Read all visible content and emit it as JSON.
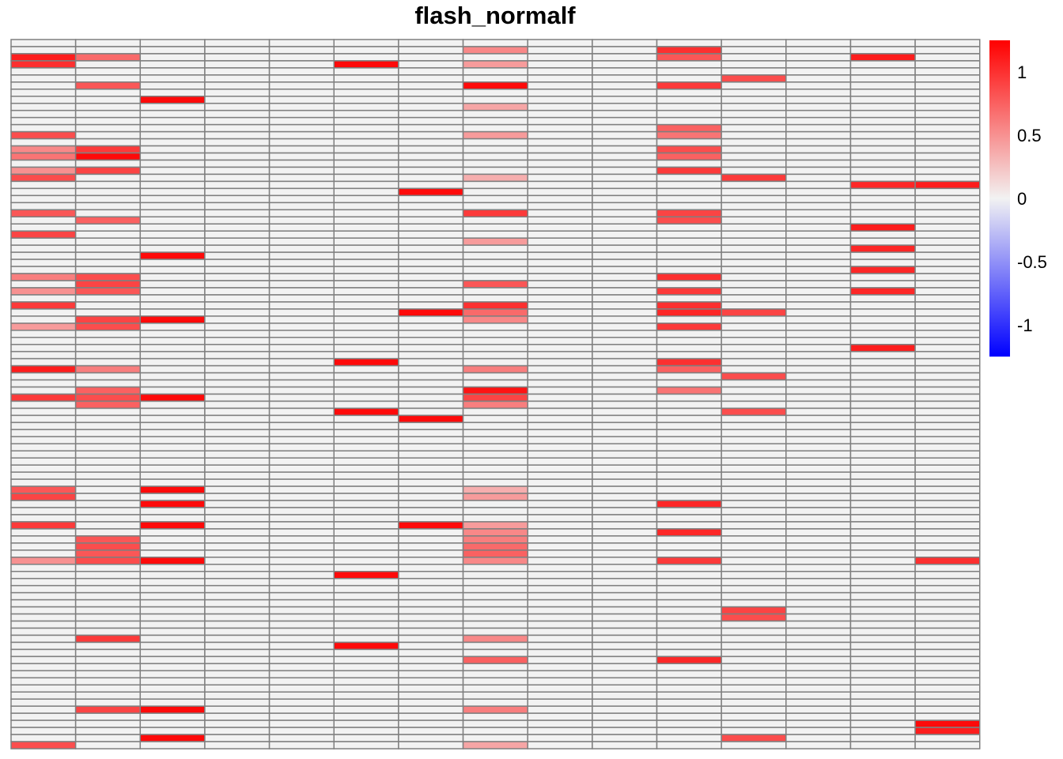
{
  "chart_data": {
    "type": "heatmap",
    "title": "flash_normalf",
    "n_rows": 100,
    "n_cols": 15,
    "colors": {
      "low": "#0000ff",
      "mid": "#f2f2f2",
      "high": "#ff0000",
      "grid": "#7f7f7f"
    },
    "value_range": [
      -1.25,
      1.25
    ],
    "legend_ticks": [
      "1",
      "0.5",
      "0",
      "-0.5",
      "-1"
    ],
    "legend_tick_values": [
      1,
      0.5,
      0,
      -0.5,
      -1
    ],
    "cells": [
      [
        2,
        0,
        1.1
      ],
      [
        3,
        0,
        1.0
      ],
      [
        13,
        0,
        0.85
      ],
      [
        15,
        0,
        0.55
      ],
      [
        16,
        0,
        0.65
      ],
      [
        18,
        0,
        0.5
      ],
      [
        19,
        0,
        0.85
      ],
      [
        24,
        0,
        0.8
      ],
      [
        27,
        0,
        0.9
      ],
      [
        33,
        0,
        0.6
      ],
      [
        35,
        0,
        0.5
      ],
      [
        37,
        0,
        0.95
      ],
      [
        40,
        0,
        0.45
      ],
      [
        46,
        0,
        1.1
      ],
      [
        50,
        0,
        0.95
      ],
      [
        63,
        0,
        0.8
      ],
      [
        64,
        0,
        0.9
      ],
      [
        68,
        0,
        0.95
      ],
      [
        73,
        0,
        0.5
      ],
      [
        99,
        0,
        0.85
      ],
      [
        2,
        1,
        0.7
      ],
      [
        6,
        1,
        0.8
      ],
      [
        15,
        1,
        0.95
      ],
      [
        16,
        1,
        1.2
      ],
      [
        18,
        1,
        0.9
      ],
      [
        25,
        1,
        0.75
      ],
      [
        33,
        1,
        0.85
      ],
      [
        34,
        1,
        0.9
      ],
      [
        35,
        1,
        0.8
      ],
      [
        39,
        1,
        0.9
      ],
      [
        40,
        1,
        0.85
      ],
      [
        46,
        1,
        0.6
      ],
      [
        49,
        1,
        0.75
      ],
      [
        50,
        1,
        0.85
      ],
      [
        51,
        1,
        0.75
      ],
      [
        70,
        1,
        0.8
      ],
      [
        71,
        1,
        0.85
      ],
      [
        72,
        1,
        0.8
      ],
      [
        73,
        1,
        0.85
      ],
      [
        84,
        1,
        0.95
      ],
      [
        94,
        1,
        0.9
      ],
      [
        8,
        2,
        1.2
      ],
      [
        30,
        2,
        1.2
      ],
      [
        39,
        2,
        1.2
      ],
      [
        50,
        2,
        1.2
      ],
      [
        63,
        2,
        1.2
      ],
      [
        65,
        2,
        1.2
      ],
      [
        68,
        2,
        1.2
      ],
      [
        73,
        2,
        1.2
      ],
      [
        94,
        2,
        1.2
      ],
      [
        98,
        2,
        1.2
      ],
      [
        3,
        5,
        1.2
      ],
      [
        45,
        5,
        1.2
      ],
      [
        52,
        5,
        1.2
      ],
      [
        75,
        5,
        1.2
      ],
      [
        85,
        5,
        1.2
      ],
      [
        21,
        6,
        1.2
      ],
      [
        38,
        6,
        1.2
      ],
      [
        53,
        6,
        1.2
      ],
      [
        68,
        6,
        1.2
      ],
      [
        1,
        7,
        0.55
      ],
      [
        3,
        7,
        0.45
      ],
      [
        6,
        7,
        1.2
      ],
      [
        9,
        7,
        0.4
      ],
      [
        13,
        7,
        0.45
      ],
      [
        19,
        7,
        0.35
      ],
      [
        24,
        7,
        0.95
      ],
      [
        28,
        7,
        0.45
      ],
      [
        34,
        7,
        0.8
      ],
      [
        37,
        7,
        1.0
      ],
      [
        38,
        7,
        0.7
      ],
      [
        39,
        7,
        0.55
      ],
      [
        46,
        7,
        0.6
      ],
      [
        49,
        7,
        1.15
      ],
      [
        50,
        7,
        0.9
      ],
      [
        51,
        7,
        0.6
      ],
      [
        63,
        7,
        0.35
      ],
      [
        64,
        7,
        0.45
      ],
      [
        68,
        7,
        0.45
      ],
      [
        69,
        7,
        0.55
      ],
      [
        70,
        7,
        0.6
      ],
      [
        71,
        7,
        0.7
      ],
      [
        72,
        7,
        0.75
      ],
      [
        73,
        7,
        0.55
      ],
      [
        84,
        7,
        0.55
      ],
      [
        87,
        7,
        0.75
      ],
      [
        94,
        7,
        0.6
      ],
      [
        99,
        7,
        0.4
      ],
      [
        1,
        10,
        1.0
      ],
      [
        2,
        10,
        0.8
      ],
      [
        6,
        10,
        0.95
      ],
      [
        12,
        10,
        0.75
      ],
      [
        13,
        10,
        0.65
      ],
      [
        15,
        10,
        0.85
      ],
      [
        16,
        10,
        0.75
      ],
      [
        18,
        10,
        0.95
      ],
      [
        24,
        10,
        0.9
      ],
      [
        25,
        10,
        0.85
      ],
      [
        33,
        10,
        1.0
      ],
      [
        35,
        10,
        0.95
      ],
      [
        37,
        10,
        1.0
      ],
      [
        38,
        10,
        1.05
      ],
      [
        40,
        10,
        0.95
      ],
      [
        45,
        10,
        1.0
      ],
      [
        46,
        10,
        0.75
      ],
      [
        49,
        10,
        0.65
      ],
      [
        65,
        10,
        1.05
      ],
      [
        69,
        10,
        1.05
      ],
      [
        73,
        10,
        0.95
      ],
      [
        87,
        10,
        1.05
      ],
      [
        5,
        11,
        0.85
      ],
      [
        19,
        11,
        0.95
      ],
      [
        38,
        11,
        0.9
      ],
      [
        47,
        11,
        0.85
      ],
      [
        52,
        11,
        0.85
      ],
      [
        80,
        11,
        0.9
      ],
      [
        81,
        11,
        0.85
      ],
      [
        98,
        11,
        0.85
      ],
      [
        2,
        13,
        1.1
      ],
      [
        20,
        13,
        1.05
      ],
      [
        26,
        13,
        1.1
      ],
      [
        29,
        13,
        1.05
      ],
      [
        32,
        13,
        1.05
      ],
      [
        35,
        13,
        1.05
      ],
      [
        43,
        13,
        1.1
      ],
      [
        20,
        14,
        1.1
      ],
      [
        73,
        14,
        1.0
      ],
      [
        96,
        14,
        1.2
      ],
      [
        97,
        14,
        1.1
      ]
    ]
  }
}
